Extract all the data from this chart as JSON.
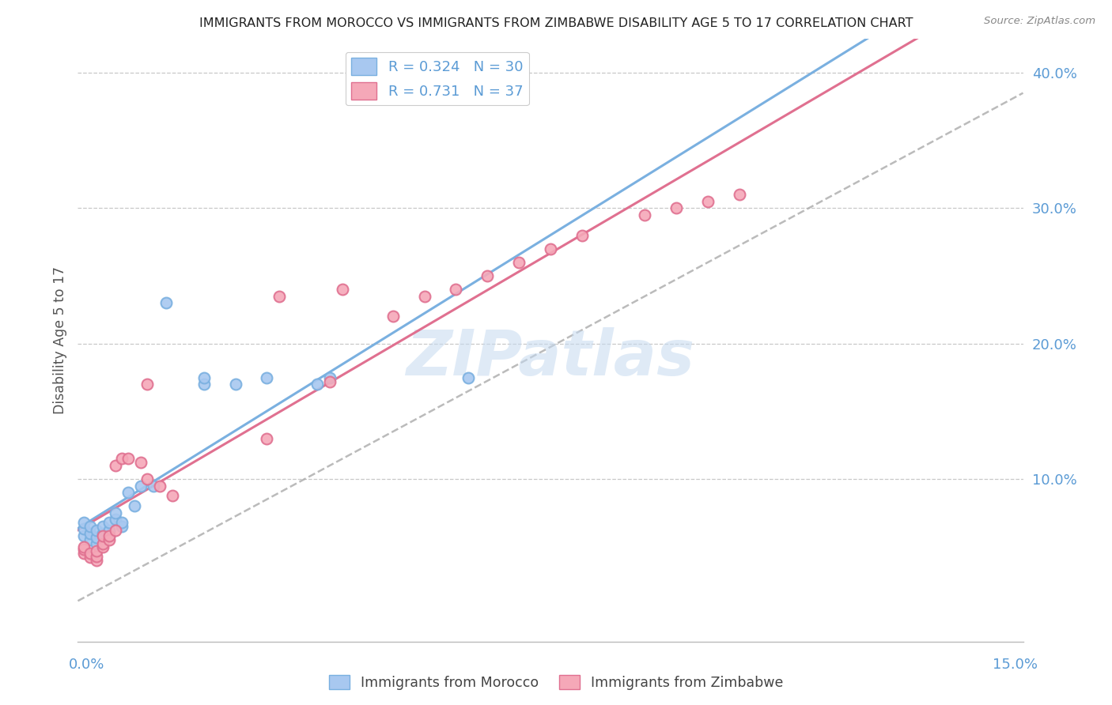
{
  "title": "IMMIGRANTS FROM MOROCCO VS IMMIGRANTS FROM ZIMBABWE DISABILITY AGE 5 TO 17 CORRELATION CHART",
  "source": "Source: ZipAtlas.com",
  "ylabel": "Disability Age 5 to 17",
  "xmin": 0.0,
  "xmax": 0.15,
  "ymin": -0.02,
  "ymax": 0.425,
  "ytick_vals": [
    0.1,
    0.2,
    0.3,
    0.4
  ],
  "ytick_labels": [
    "10.0%",
    "20.0%",
    "30.0%",
    "40.0%"
  ],
  "morocco_color": "#a8c8f0",
  "morocco_edge": "#7ab0e0",
  "zimbabwe_color": "#f5a8b8",
  "zimbabwe_edge": "#e07090",
  "morocco_R": 0.324,
  "morocco_N": 30,
  "zimbabwe_R": 0.731,
  "zimbabwe_N": 37,
  "title_fontsize": 11.5,
  "axis_color": "#5b9bd5",
  "grid_color": "#c8c8c8",
  "background_color": "#ffffff",
  "watermark_text": "ZIPatlas",
  "watermark_color": "#c5daf0",
  "morocco_line_color": "#7ab0e0",
  "zimbabwe_line_color": "#e07090",
  "morocco_line_style": "-",
  "zimbabwe_line_style": "-",
  "gray_dashed_line": true,
  "morocco_x": [
    0.001,
    0.001,
    0.001,
    0.002,
    0.002,
    0.002,
    0.003,
    0.003,
    0.003,
    0.004,
    0.004,
    0.005,
    0.005,
    0.005,
    0.006,
    0.006,
    0.007,
    0.007,
    0.008,
    0.009,
    0.01,
    0.012,
    0.014,
    0.02,
    0.02,
    0.025,
    0.03,
    0.038,
    0.04,
    0.062
  ],
  "morocco_y": [
    0.058,
    0.063,
    0.068,
    0.055,
    0.06,
    0.065,
    0.052,
    0.057,
    0.062,
    0.06,
    0.065,
    0.058,
    0.062,
    0.068,
    0.07,
    0.075,
    0.065,
    0.068,
    0.09,
    0.08,
    0.095,
    0.095,
    0.23,
    0.17,
    0.175,
    0.17,
    0.175,
    0.17,
    0.175,
    0.175
  ],
  "zimbabwe_x": [
    0.001,
    0.001,
    0.001,
    0.002,
    0.002,
    0.003,
    0.003,
    0.003,
    0.004,
    0.004,
    0.004,
    0.005,
    0.005,
    0.006,
    0.006,
    0.007,
    0.008,
    0.01,
    0.011,
    0.011,
    0.013,
    0.015,
    0.03,
    0.032,
    0.04,
    0.042,
    0.05,
    0.055,
    0.06,
    0.065,
    0.07,
    0.075,
    0.08,
    0.09,
    0.095,
    0.1,
    0.105
  ],
  "zimbabwe_y": [
    0.045,
    0.048,
    0.05,
    0.042,
    0.045,
    0.04,
    0.043,
    0.047,
    0.05,
    0.052,
    0.058,
    0.055,
    0.058,
    0.062,
    0.11,
    0.115,
    0.115,
    0.112,
    0.1,
    0.17,
    0.095,
    0.088,
    0.13,
    0.235,
    0.172,
    0.24,
    0.22,
    0.235,
    0.24,
    0.25,
    0.26,
    0.27,
    0.28,
    0.295,
    0.3,
    0.305,
    0.31
  ],
  "morocco_line_intercept": 0.04,
  "morocco_line_slope": 1.2,
  "zimbabwe_line_intercept": 0.02,
  "zimbabwe_line_slope": 2.0
}
